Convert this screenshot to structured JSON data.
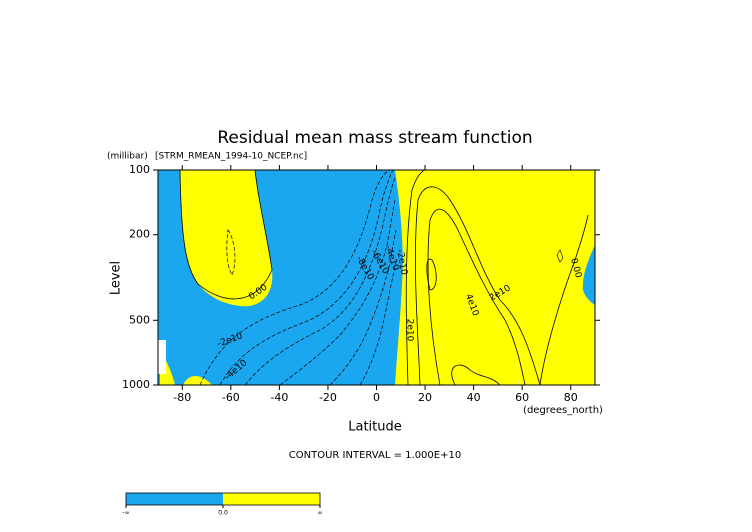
{
  "chart_data": {
    "type": "contour",
    "title": "Residual mean mass stream function",
    "subtitle": "[STRM_RMEAN_1994-10_NCEP.nc]",
    "y_unit_label": "(millibar)",
    "x_unit_label": "(degrees_north)",
    "xlabel": "Latitude",
    "ylabel": "Level",
    "xlim": [
      -90,
      90
    ],
    "ylim": [
      1000,
      100
    ],
    "y_scale": "log",
    "xticks": [
      -80,
      -60,
      -40,
      -20,
      0,
      20,
      40,
      60,
      80
    ],
    "yticks": [
      100,
      200,
      500,
      1000
    ],
    "contour_interval_label": "CONTOUR INTERVAL = 1.000E+10",
    "contour_labels": [
      {
        "value": 0,
        "label": "0.00"
      },
      {
        "value": -20000000000.0,
        "label": "-2e10"
      },
      {
        "value": -40000000000.0,
        "label": "-4e10"
      },
      {
        "value": -80000000000.0,
        "label": "-8e10"
      },
      {
        "value": -60000000000.0,
        "label": "-6e10"
      },
      {
        "value": -40000000000.0,
        "label": "-4e10"
      },
      {
        "value": -20000000000.0,
        "label": "-2e10"
      },
      {
        "value": 20000000000.0,
        "label": "2e10"
      },
      {
        "value": 40000000000.0,
        "label": "4e10"
      },
      {
        "value": 20000000000.0,
        "label": "2e10"
      },
      {
        "value": 0,
        "label": "0.00"
      }
    ],
    "colorbar": {
      "colors": [
        "#1aa7f0",
        "#ffff00"
      ],
      "labels": [
        "-∞",
        "0.0",
        "∞"
      ]
    }
  }
}
